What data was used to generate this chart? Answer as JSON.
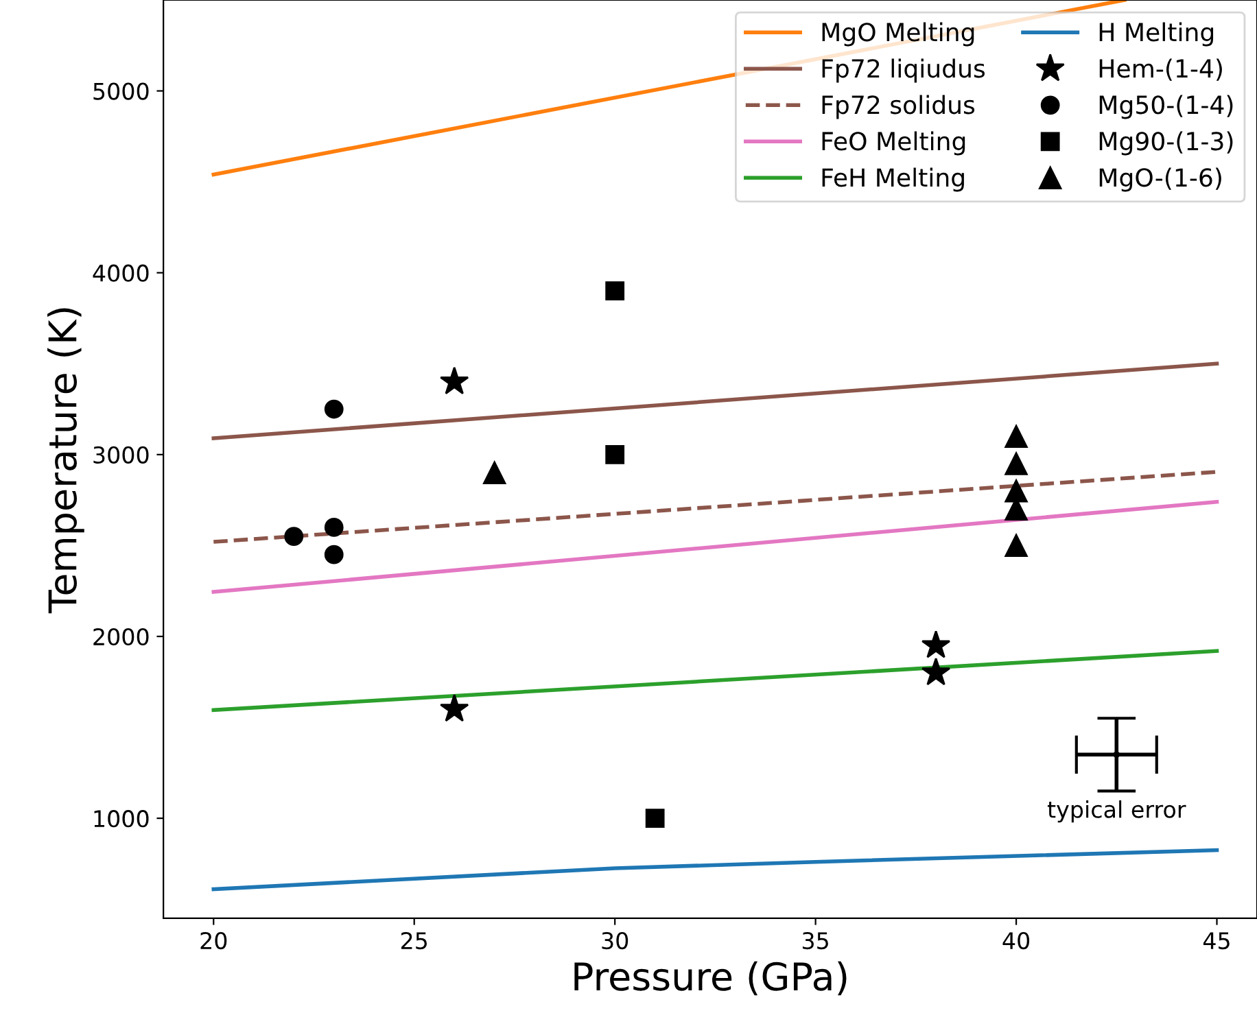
{
  "chart_data": {
    "type": "line",
    "xlabel": "Pressure (GPa)",
    "ylabel": "Temperature (K)",
    "xlim": [
      18.75,
      46.0
    ],
    "ylim": [
      450,
      5500
    ],
    "xticks": [
      20,
      25,
      30,
      35,
      40,
      45
    ],
    "yticks": [
      1000,
      2000,
      3000,
      4000,
      5000
    ],
    "grid": false,
    "annotations": [
      {
        "text": "typical error",
        "x": 42.5,
        "y": 1350
      }
    ],
    "legend": "top right",
    "series": [
      {
        "name": "MgO Melting",
        "color": "#ff7f0e",
        "line_style": "solid",
        "marker": "none",
        "x": [
          20,
          42.7
        ],
        "values": [
          4540,
          5500
        ]
      },
      {
        "name": "Fp72 liqiudus",
        "color": "#8c564b",
        "line_style": "solid",
        "marker": "none",
        "x": [
          20,
          45
        ],
        "values": [
          3090,
          3500
        ]
      },
      {
        "name": "Fp72 solidus",
        "color": "#8c564b",
        "line_style": "dashed",
        "marker": "none",
        "x": [
          20,
          45
        ],
        "values": [
          2520,
          2905
        ]
      },
      {
        "name": "FeO Melting",
        "color": "#e377c2",
        "line_style": "solid",
        "marker": "none",
        "x": [
          20,
          45
        ],
        "values": [
          2245,
          2740
        ]
      },
      {
        "name": "FeH Melting",
        "color": "#2ca02c",
        "line_style": "solid",
        "marker": "none",
        "x": [
          20,
          45
        ],
        "values": [
          1595,
          1920
        ]
      },
      {
        "name": "H Melting",
        "color": "#1f77b4",
        "line_style": "solid",
        "marker": "none",
        "x": [
          20,
          30,
          35,
          45
        ],
        "values": [
          610,
          725,
          760,
          825
        ]
      },
      {
        "name": "Hem-(1-4)",
        "type": "scatter",
        "color": "#000000",
        "marker": "star",
        "x": [
          26,
          26,
          38,
          38
        ],
        "values": [
          3400,
          1600,
          1950,
          1800
        ]
      },
      {
        "name": "Mg50-(1-4)",
        "type": "scatter",
        "color": "#000000",
        "marker": "circle",
        "x": [
          23,
          22,
          23,
          23
        ],
        "values": [
          3250,
          2550,
          2600,
          2450
        ]
      },
      {
        "name": "Mg90-(1-3)",
        "type": "scatter",
        "color": "#000000",
        "marker": "square",
        "x": [
          30,
          30,
          31
        ],
        "values": [
          3900,
          3000,
          1000
        ]
      },
      {
        "name": "MgO-(1-6)",
        "type": "scatter",
        "color": "#000000",
        "marker": "triangle",
        "x": [
          40,
          40,
          40,
          40,
          40,
          27
        ],
        "values": [
          3100,
          2950,
          2800,
          2700,
          2500,
          2900
        ]
      },
      {
        "type": "scatter",
        "color": "#000000",
        "marker": "none",
        "x": [
          42.5
        ],
        "values": [
          1350
        ],
        "errors": [
          200
        ],
        "xerrors": [
          1.0
        ]
      }
    ]
  }
}
